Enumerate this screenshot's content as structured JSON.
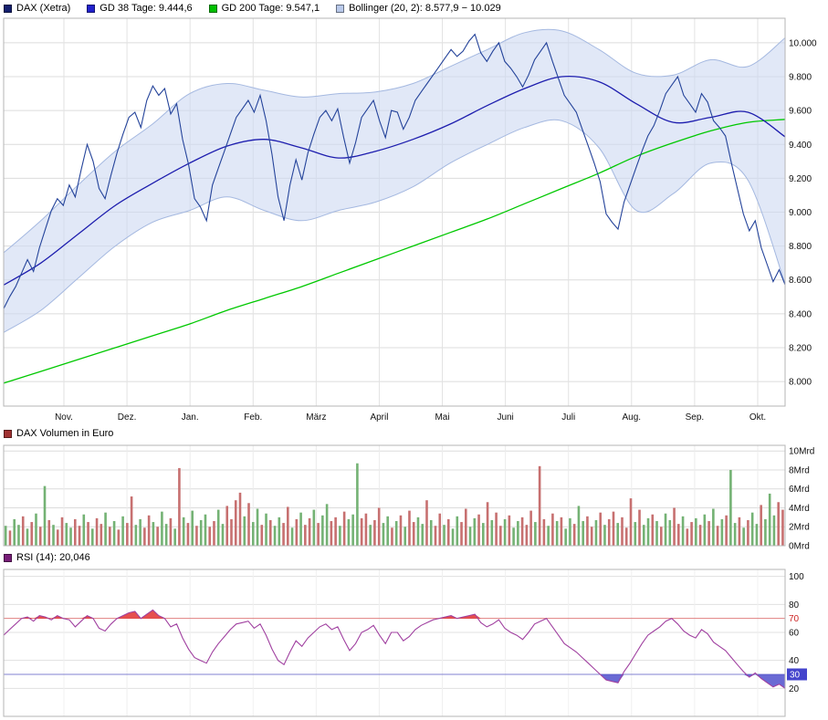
{
  "chart_data": [
    {
      "type": "line",
      "title": "DAX (Xetra)",
      "x_labels": [
        "Nov.",
        "Dez.",
        "Jan.",
        "Feb.",
        "März",
        "April",
        "Mai",
        "Juni",
        "Juli",
        "Aug.",
        "Sep.",
        "Okt."
      ],
      "ylim": [
        7855,
        10145
      ],
      "yticks": [
        8000,
        8200,
        8400,
        8600,
        8800,
        9000,
        9200,
        9400,
        9600,
        9800,
        10000
      ],
      "ytick_labels": [
        "8.000",
        "8.200",
        "8.400",
        "8.600",
        "8.800",
        "9.000",
        "9.200",
        "9.400",
        "9.600",
        "9.800",
        "10.000"
      ],
      "legend": [
        {
          "label": "DAX (Xetra)",
          "color": "#14206e"
        },
        {
          "label": "GD 38 Tage: 9.444,6",
          "color": "#2121cc"
        },
        {
          "label": "GD 200 Tage: 9.547,1",
          "color": "#00c000"
        },
        {
          "label": "Bollinger (20, 2): 8.577,9 − 10.029",
          "color": "#b9c9ea"
        }
      ],
      "series": [
        {
          "name": "DAX (Xetra)",
          "color": "#24439a",
          "smooth": false,
          "values": [
            8430,
            8500,
            8560,
            8640,
            8720,
            8650,
            8790,
            8900,
            9010,
            9080,
            9040,
            9160,
            9090,
            9250,
            9400,
            9300,
            9140,
            9080,
            9220,
            9350,
            9460,
            9560,
            9590,
            9500,
            9660,
            9745,
            9690,
            9730,
            9580,
            9640,
            9430,
            9280,
            9080,
            9030,
            8950,
            9160,
            9260,
            9360,
            9460,
            9560,
            9610,
            9660,
            9590,
            9690,
            9540,
            9340,
            9090,
            8950,
            9160,
            9310,
            9190,
            9350,
            9460,
            9560,
            9600,
            9540,
            9610,
            9440,
            9290,
            9410,
            9560,
            9610,
            9660,
            9540,
            9440,
            9600,
            9590,
            9490,
            9560,
            9660,
            9710,
            9760,
            9810,
            9860,
            9910,
            9960,
            9920,
            9950,
            10010,
            10050,
            9940,
            9890,
            9950,
            10000,
            9890,
            9850,
            9800,
            9740,
            9810,
            9900,
            9950,
            10000,
            9890,
            9790,
            9690,
            9640,
            9590,
            9490,
            9390,
            9290,
            9180,
            8990,
            8940,
            8900,
            9060,
            9160,
            9260,
            9360,
            9450,
            9510,
            9600,
            9700,
            9750,
            9800,
            9690,
            9640,
            9590,
            9700,
            9650,
            9540,
            9500,
            9450,
            9290,
            9140,
            8990,
            8890,
            8950,
            8790,
            8690,
            8590,
            8660,
            8571
          ]
        },
        {
          "name": "GD 38 Tage",
          "current": "9.444,6",
          "color": "#1d1dae",
          "smooth": true,
          "values": [
            8570,
            8700,
            8870,
            9040,
            9170,
            9290,
            9390,
            9430,
            9380,
            9320,
            9360,
            9430,
            9520,
            9630,
            9730,
            9800,
            9770,
            9640,
            9530,
            9560,
            9590,
            9445
          ]
        },
        {
          "name": "GD 200 Tage",
          "current": "9.547,1",
          "color": "#00c800",
          "smooth": true,
          "values": [
            7990,
            8060,
            8130,
            8200,
            8270,
            8340,
            8420,
            8490,
            8560,
            8640,
            8720,
            8800,
            8880,
            8960,
            9050,
            9140,
            9230,
            9330,
            9410,
            9480,
            9530,
            9548
          ]
        }
      ],
      "band": {
        "name": "Bollinger (20, 2)",
        "range": "8.577,9 − 10.029",
        "fill": "#cdd9f2",
        "opacity": 0.6,
        "edge": "#a4b8e0",
        "upper": [
          8760,
          8950,
          9160,
          9360,
          9520,
          9700,
          9760,
          9720,
          9680,
          9700,
          9710,
          9760,
          9860,
          9960,
          10060,
          10070,
          9960,
          9820,
          9810,
          9900,
          9860,
          10029
        ],
        "lower": [
          8290,
          8420,
          8610,
          8800,
          8940,
          9010,
          9090,
          9010,
          8950,
          9010,
          9060,
          9150,
          9290,
          9400,
          9500,
          9540,
          9380,
          9010,
          9110,
          9290,
          9190,
          8578
        ]
      }
    },
    {
      "type": "bar",
      "title": "DAX Volumen in Euro",
      "unit": "Mrd",
      "ylim": [
        0,
        10.6
      ],
      "yticks": [
        0,
        2,
        4,
        6,
        8,
        10
      ],
      "ytick_labels": [
        "0Mrd",
        "2Mrd",
        "4Mrd",
        "6Mrd",
        "8Mrd",
        "10Mrd"
      ],
      "legend": [
        {
          "label": "DAX Volumen in Euro",
          "color": "#a03232"
        }
      ],
      "colors": {
        "up": "#74b274",
        "down": "#c77070"
      },
      "values": [
        2.1,
        1.6,
        2.8,
        2.2,
        3.1,
        1.8,
        2.5,
        3.4,
        2.0,
        6.3,
        2.7,
        2.2,
        1.7,
        3.0,
        2.4,
        1.9,
        2.8,
        2.1,
        3.3,
        2.5,
        1.8,
        2.9,
        2.3,
        3.5,
        2.0,
        2.6,
        1.7,
        3.1,
        2.4,
        5.2,
        2.2,
        2.8,
        1.9,
        3.2,
        2.5,
        2.0,
        3.6,
        2.3,
        2.9,
        1.8,
        8.2,
        3.0,
        2.4,
        3.7,
        2.1,
        2.7,
        3.3,
        2.0,
        2.6,
        3.8,
        2.3,
        4.2,
        2.8,
        4.8,
        5.6,
        3.1,
        4.5,
        2.5,
        3.9,
        2.2,
        3.4,
        2.7,
        2.1,
        3.0,
        2.4,
        4.1,
        1.9,
        2.8,
        3.5,
        2.2,
        2.9,
        3.8,
        2.4,
        3.2,
        4.4,
        2.6,
        3.0,
        2.1,
        3.6,
        2.8,
        3.3,
        8.7,
        2.9,
        3.4,
        2.2,
        2.7,
        4.0,
        2.4,
        3.1,
        1.9,
        2.6,
        3.2,
        2.0,
        3.7,
        2.5,
        3.0,
        2.3,
        4.8,
        2.7,
        2.1,
        3.4,
        2.2,
        2.8,
        1.8,
        3.1,
        2.5,
        3.9,
        2.0,
        2.9,
        3.3,
        2.4,
        4.6,
        2.7,
        3.5,
        2.1,
        2.8,
        3.2,
        1.9,
        2.6,
        3.0,
        2.2,
        3.7,
        2.5,
        8.4,
        2.8,
        2.1,
        3.4,
        2.6,
        3.0,
        1.8,
        2.9,
        2.3,
        4.2,
        2.6,
        3.1,
        2.0,
        2.7,
        3.5,
        2.2,
        2.8,
        3.6,
        2.4,
        3.0,
        1.9,
        5.0,
        2.5,
        3.8,
        2.2,
        2.9,
        3.3,
        2.6,
        2.0,
        3.4,
        2.7,
        4.0,
        2.3,
        3.1,
        1.8,
        2.5,
        2.9,
        2.2,
        3.3,
        2.6,
        3.9,
        2.1,
        2.8,
        3.2,
        8.0,
        2.4,
        3.0,
        1.9,
        2.7,
        3.5,
        2.3,
        4.3,
        2.8,
        5.5,
        3.2,
        4.6,
        3.8
      ],
      "directions": [
        "uduudududu",
        "dudduuddud",
        "uddudududd",
        "uudduduudu",
        "dududuuddu",
        "udddduduud",
        "uduuddudud",
        "duduuddudu",
        "uuddudduud",
        "ududduudud",
        "duduudduud",
        "ududduduud",
        "dduddududu",
        "uduuddudud",
        "duddduduud",
        "uduudduddu",
        "dudududuud",
        "uduuduuudd"
      ]
    },
    {
      "type": "line",
      "title": "RSI (14)",
      "current": "20,046",
      "ylim": [
        0,
        105
      ],
      "yticks": [
        100,
        80,
        70,
        60,
        40,
        30,
        20
      ],
      "ytick_labels": [
        "100",
        "80",
        "70",
        "60",
        "40",
        "30",
        "20"
      ],
      "legend": [
        {
          "label": "RSI (14): 20,046",
          "color": "#781e78"
        }
      ],
      "color": "#a040a0",
      "thresholds": {
        "overbought": {
          "value": 70,
          "line_color": "#e08080",
          "fill": "#e03030",
          "label_color": "#cc2222"
        },
        "oversold": {
          "value": 30,
          "line_color": "#8080d0",
          "fill": "#5050cc",
          "badge": "#4444cc",
          "label_color": "#ffffff"
        }
      },
      "values": [
        58,
        62,
        66,
        70,
        71,
        68,
        72,
        71,
        69,
        72,
        70,
        69,
        64,
        68,
        72,
        70,
        63,
        61,
        66,
        70,
        72,
        74,
        75,
        70,
        73,
        76,
        72,
        70,
        64,
        66,
        56,
        48,
        42,
        40,
        38,
        46,
        52,
        57,
        62,
        66,
        67,
        68,
        63,
        66,
        58,
        48,
        40,
        37,
        46,
        54,
        50,
        56,
        60,
        64,
        66,
        62,
        64,
        55,
        47,
        52,
        60,
        62,
        65,
        58,
        52,
        60,
        60,
        54,
        57,
        62,
        65,
        67,
        69,
        70,
        71,
        72,
        70,
        71,
        72,
        73,
        67,
        64,
        66,
        69,
        63,
        60,
        58,
        55,
        60,
        66,
        68,
        70,
        64,
        58,
        52,
        49,
        46,
        42,
        38,
        34,
        30,
        26,
        25,
        24,
        32,
        38,
        45,
        52,
        58,
        61,
        64,
        68,
        70,
        66,
        61,
        58,
        56,
        62,
        59,
        53,
        50,
        47,
        42,
        37,
        32,
        28,
        31,
        27,
        24,
        21,
        23,
        20
      ]
    }
  ]
}
